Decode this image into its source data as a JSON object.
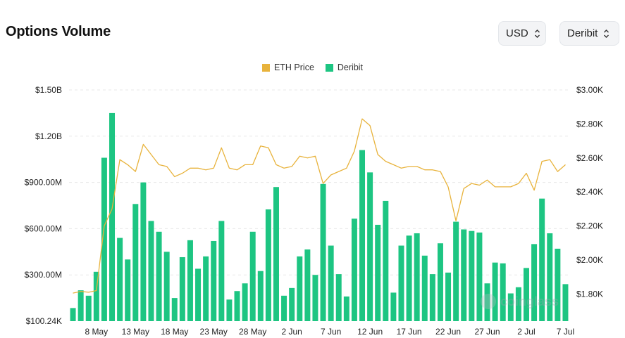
{
  "header": {
    "title": "Options Volume",
    "currency_select": "USD",
    "exchange_select": "Deribit"
  },
  "watermark": "coinglass",
  "colors": {
    "price": "#e8b33c",
    "volume": "#1dc582",
    "grid": "#e8e8e8"
  },
  "chart_data": {
    "type": "bar",
    "legend": [
      {
        "name": "ETH Price",
        "color": "#e8b33c"
      },
      {
        "name": "Deribit",
        "color": "#1dc582"
      }
    ],
    "legend_position": "top-center",
    "grid": true,
    "x_ticks": [
      "8 May",
      "13 May",
      "18 May",
      "23 May",
      "28 May",
      "2 Jun",
      "7 Jun",
      "12 Jun",
      "17 Jun",
      "22 Jun",
      "27 Jun",
      "2 Jul",
      "7 Jul"
    ],
    "y_left": {
      "ticks": [
        "$1.50B",
        "$1.20B",
        "$900.00M",
        "$600.00M",
        "$300.00M",
        "$100.24K"
      ],
      "ylim": [
        0,
        1500000000
      ]
    },
    "y_right": {
      "ticks": [
        "$3.00K",
        "$2.80K",
        "$2.60K",
        "$2.40K",
        "$2.20K",
        "$2.00K",
        "$1.80K"
      ],
      "ylim": [
        1640,
        3000
      ]
    },
    "series": [
      {
        "name": "Deribit",
        "type": "bar",
        "values": [
          85000000,
          200000000,
          165000000,
          320000000,
          1060000000,
          1350000000,
          540000000,
          400000000,
          760000000,
          900000000,
          650000000,
          580000000,
          450000000,
          150000000,
          415000000,
          525000000,
          340000000,
          420000000,
          520000000,
          650000000,
          140000000,
          195000000,
          245000000,
          580000000,
          325000000,
          725000000,
          870000000,
          165000000,
          215000000,
          420000000,
          465000000,
          300000000,
          890000000,
          490000000,
          305000000,
          160000000,
          665000000,
          1110000000,
          965000000,
          625000000,
          780000000,
          185000000,
          490000000,
          555000000,
          570000000,
          425000000,
          305000000,
          505000000,
          315000000,
          645000000,
          595000000,
          585000000,
          575000000,
          245000000,
          380000000,
          375000000,
          180000000,
          220000000,
          345000000,
          500000000,
          795000000,
          570000000,
          470000000,
          240000000
        ]
      },
      {
        "name": "ETH Price",
        "type": "line",
        "values": [
          1805,
          1815,
          1810,
          1820,
          2200,
          2300,
          2590,
          2560,
          2520,
          2680,
          2620,
          2560,
          2550,
          2490,
          2510,
          2540,
          2540,
          2530,
          2540,
          2660,
          2540,
          2530,
          2560,
          2560,
          2670,
          2660,
          2560,
          2540,
          2550,
          2610,
          2600,
          2610,
          2450,
          2500,
          2520,
          2540,
          2640,
          2830,
          2790,
          2620,
          2580,
          2560,
          2540,
          2550,
          2550,
          2530,
          2530,
          2520,
          2430,
          2230,
          2420,
          2450,
          2440,
          2470,
          2430,
          2430,
          2430,
          2450,
          2510,
          2410,
          2580,
          2590,
          2520,
          2560
        ]
      }
    ]
  }
}
